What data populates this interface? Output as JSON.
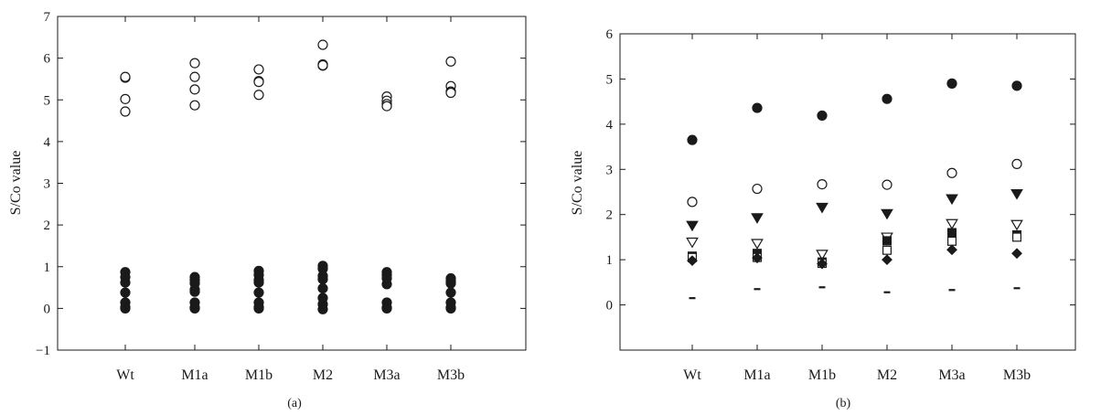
{
  "chart_data": [
    {
      "type": "scatter",
      "panel_label": "(a)",
      "ylabel": "S/Co value",
      "categories": [
        "Wt",
        "M1a",
        "M1b",
        "M2",
        "M3a",
        "M3b"
      ],
      "ylim": [
        -1,
        7
      ],
      "yticks": [
        -1,
        0,
        1,
        2,
        3,
        4,
        5,
        6,
        7
      ],
      "grid": false,
      "series": [
        {
          "marker": "open-circle",
          "points": [
            [
              "Wt",
              5.53
            ],
            [
              "Wt",
              5.55
            ],
            [
              "Wt",
              5.02
            ],
            [
              "Wt",
              4.72
            ],
            [
              "M1a",
              5.88
            ],
            [
              "M1a",
              5.55
            ],
            [
              "M1a",
              5.25
            ],
            [
              "M1a",
              4.87
            ],
            [
              "M1b",
              5.73
            ],
            [
              "M1b",
              5.45
            ],
            [
              "M1b",
              5.43
            ],
            [
              "M1b",
              5.12
            ],
            [
              "M2",
              6.32
            ],
            [
              "M2",
              5.85
            ],
            [
              "M2",
              5.82
            ],
            [
              "M2",
              5.83
            ],
            [
              "M3a",
              5.08
            ],
            [
              "M3a",
              4.98
            ],
            [
              "M3a",
              4.9
            ],
            [
              "M3a",
              4.85
            ],
            [
              "M3b",
              5.92
            ],
            [
              "M3b",
              5.33
            ],
            [
              "M3b",
              5.2
            ],
            [
              "M3b",
              5.17
            ]
          ]
        },
        {
          "marker": "filled-circle",
          "points": [
            [
              "Wt",
              0.87
            ],
            [
              "Wt",
              0.75
            ],
            [
              "Wt",
              0.62
            ],
            [
              "Wt",
              0.38
            ],
            [
              "Wt",
              0.14
            ],
            [
              "Wt",
              0.03
            ],
            [
              "Wt",
              0.0
            ],
            [
              "M1a",
              0.75
            ],
            [
              "M1a",
              0.68
            ],
            [
              "M1a",
              0.6
            ],
            [
              "M1a",
              0.45
            ],
            [
              "M1a",
              0.4
            ],
            [
              "M1a",
              0.14
            ],
            [
              "M1a",
              0.02
            ],
            [
              "M1a",
              0.0
            ],
            [
              "M1b",
              0.9
            ],
            [
              "M1b",
              0.8
            ],
            [
              "M1b",
              0.68
            ],
            [
              "M1b",
              0.62
            ],
            [
              "M1b",
              0.38
            ],
            [
              "M1b",
              0.14
            ],
            [
              "M1b",
              0.03
            ],
            [
              "M1b",
              0.0
            ],
            [
              "M2",
              1.02
            ],
            [
              "M2",
              0.95
            ],
            [
              "M2",
              0.78
            ],
            [
              "M2",
              0.7
            ],
            [
              "M2",
              0.48
            ],
            [
              "M2",
              0.25
            ],
            [
              "M2",
              0.1
            ],
            [
              "M2",
              -0.02
            ],
            [
              "M3a",
              0.87
            ],
            [
              "M3a",
              0.8
            ],
            [
              "M3a",
              0.72
            ],
            [
              "M3a",
              0.58
            ],
            [
              "M3a",
              0.14
            ],
            [
              "M3a",
              0.02
            ],
            [
              "M3a",
              0.0
            ],
            [
              "M3b",
              0.72
            ],
            [
              "M3b",
              0.65
            ],
            [
              "M3b",
              0.6
            ],
            [
              "M3b",
              0.38
            ],
            [
              "M3b",
              0.14
            ],
            [
              "M3b",
              0.02
            ],
            [
              "M3b",
              0.0
            ]
          ]
        }
      ]
    },
    {
      "type": "scatter",
      "panel_label": "(b)",
      "ylabel": "S/Co value",
      "categories": [
        "Wt",
        "M1a",
        "M1b",
        "M2",
        "M3a",
        "M3b"
      ],
      "ylim": [
        -1,
        6
      ],
      "yticks": [
        0,
        1,
        2,
        3,
        4,
        5,
        6
      ],
      "grid": false,
      "series": [
        {
          "marker": "filled-circle",
          "values": [
            3.65,
            4.36,
            4.19,
            4.56,
            4.9,
            4.85
          ]
        },
        {
          "marker": "open-circle",
          "values": [
            2.28,
            2.57,
            2.67,
            2.66,
            2.92,
            3.12
          ]
        },
        {
          "marker": "filled-triangle-down",
          "values": [
            1.76,
            1.93,
            2.16,
            2.02,
            2.35,
            2.46
          ]
        },
        {
          "marker": "open-triangle-down",
          "values": [
            1.39,
            1.36,
            1.12,
            1.5,
            1.8,
            1.78
          ]
        },
        {
          "marker": "filled-square",
          "values": [
            1.08,
            1.14,
            0.95,
            1.42,
            1.6,
            1.55
          ]
        },
        {
          "marker": "open-square",
          "values": [
            1.05,
            1.05,
            0.92,
            1.21,
            1.41,
            1.5
          ]
        },
        {
          "marker": "filled-diamond",
          "values": [
            0.98,
            1.04,
            0.91,
            1.0,
            1.22,
            1.14
          ]
        },
        {
          "marker": "dash",
          "values": [
            0.15,
            0.35,
            0.39,
            0.28,
            0.33,
            0.37
          ]
        }
      ]
    }
  ]
}
